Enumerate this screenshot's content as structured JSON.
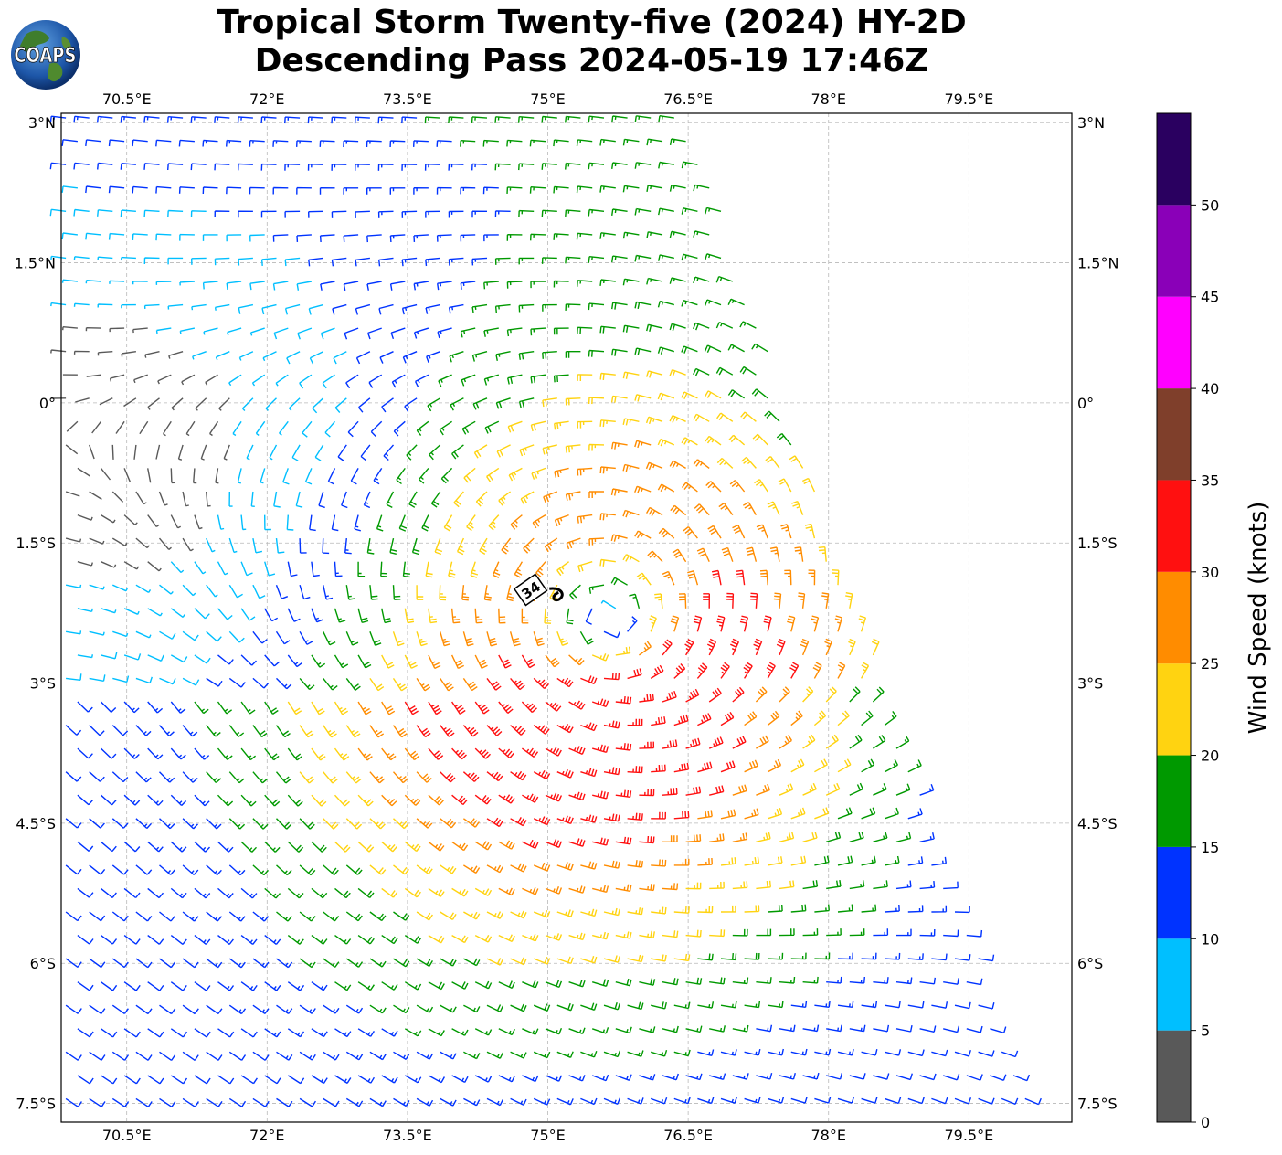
{
  "title": {
    "line1": "Tropical Storm Twenty-five (2024) HY-2D",
    "line2": "Descending Pass 2024-05-19 17:46Z"
  },
  "logo": {
    "text": "COAPS",
    "icon": "globe-logo"
  },
  "map": {
    "lon_ticks": [
      "70.5°E",
      "72°E",
      "73.5°E",
      "75°E",
      "76.5°E",
      "78°E",
      "79.5°E"
    ],
    "lat_ticks": [
      "3°N",
      "1.5°N",
      "0°",
      "1.5°S",
      "3°S",
      "4.5°S",
      "6°S",
      "7.5°S"
    ],
    "lon_values": [
      70.5,
      72,
      73.5,
      75,
      76.5,
      78,
      79.5
    ],
    "lat_values": [
      3,
      1.5,
      0,
      -1.5,
      -3,
      -4.5,
      -6,
      -7.5
    ],
    "lon_range": [
      69.8,
      80.6
    ],
    "lat_range": [
      -7.7,
      3.1
    ],
    "grid": true,
    "storm_center": {
      "lon": 75.7,
      "lat": -2.4
    },
    "storm_label": "34"
  },
  "colorbar": {
    "label": "Wind Speed (knots)",
    "ticks": [
      "0",
      "5",
      "10",
      "15",
      "20",
      "25",
      "30",
      "35",
      "40",
      "45",
      "50"
    ],
    "bins": [
      {
        "from": 0,
        "to": 5,
        "color": "#595959"
      },
      {
        "from": 5,
        "to": 10,
        "color": "#00bfff"
      },
      {
        "from": 10,
        "to": 15,
        "color": "#0033ff"
      },
      {
        "from": 15,
        "to": 20,
        "color": "#009900"
      },
      {
        "from": 20,
        "to": 25,
        "color": "#ffd311"
      },
      {
        "from": 25,
        "to": 30,
        "color": "#ff8c00"
      },
      {
        "from": 30,
        "to": 35,
        "color": "#ff1010"
      },
      {
        "from": 35,
        "to": 40,
        "color": "#7f3f2b"
      },
      {
        "from": 40,
        "to": 45,
        "color": "#ff00ff"
      },
      {
        "from": 45,
        "to": 50,
        "color": "#8a00b8"
      },
      {
        "from": 50,
        "to": 55,
        "color": "#2a0060"
      }
    ]
  }
}
